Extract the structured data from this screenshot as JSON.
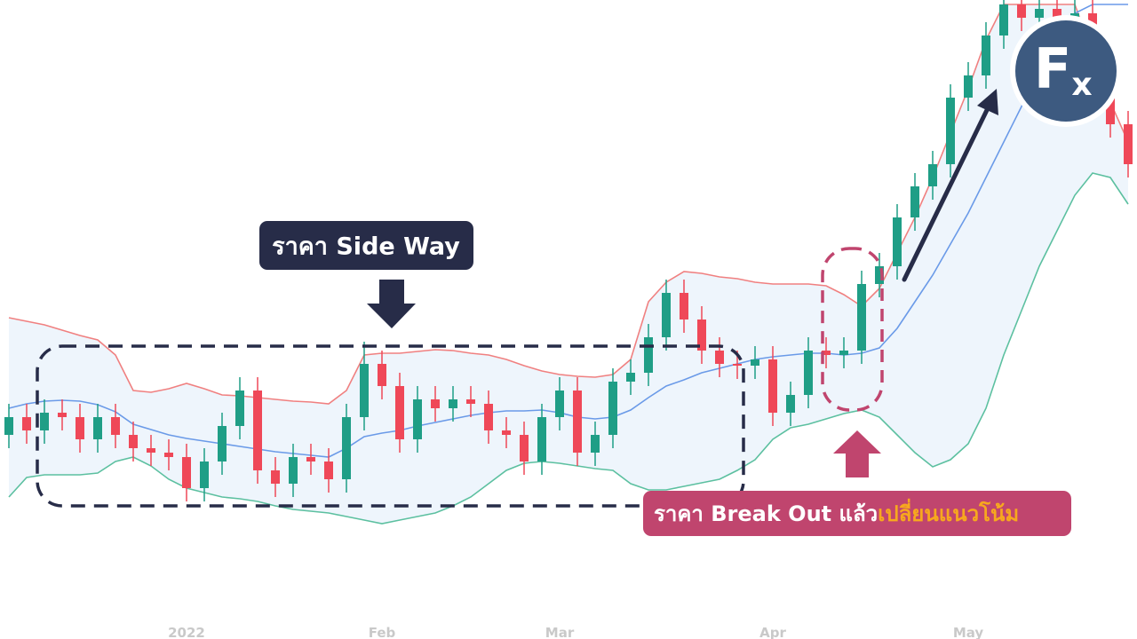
{
  "chart_data": {
    "type": "candlestick",
    "categories": [
      null,
      null,
      null,
      null,
      null,
      null,
      null,
      null,
      null,
      null,
      "2022",
      null,
      null,
      null,
      null,
      null,
      null,
      null,
      null,
      null,
      null,
      "Feb",
      null,
      null,
      null,
      null,
      null,
      null,
      null,
      null,
      null,
      "Mar",
      null,
      null,
      null,
      null,
      null,
      null,
      null,
      null,
      null,
      null,
      null,
      "Apr",
      null,
      null,
      null,
      null,
      null,
      null,
      null,
      null,
      null,
      null,
      "May",
      null,
      null,
      null,
      null,
      null,
      null,
      null,
      null,
      null
    ],
    "open": [
      230,
      250,
      235,
      255,
      250,
      225,
      250,
      230,
      215,
      210,
      205,
      170,
      200,
      240,
      280,
      190,
      175,
      205,
      200,
      180,
      250,
      310,
      285,
      225,
      270,
      260,
      270,
      265,
      235,
      230,
      200,
      250,
      280,
      210,
      230,
      290,
      300,
      340,
      390,
      360,
      325,
      310,
      308,
      315,
      255,
      275,
      325,
      320,
      325,
      400,
      420,
      475,
      510,
      535,
      610,
      635,
      680,
      715,
      700,
      710,
      690,
      705,
      660,
      580
    ],
    "high": [
      265,
      265,
      270,
      270,
      265,
      265,
      265,
      245,
      230,
      225,
      220,
      215,
      255,
      295,
      295,
      205,
      220,
      220,
      215,
      265,
      335,
      325,
      300,
      285,
      285,
      285,
      285,
      280,
      250,
      245,
      265,
      295,
      295,
      245,
      305,
      315,
      355,
      405,
      405,
      375,
      340,
      325,
      330,
      330,
      290,
      340,
      340,
      340,
      415,
      435,
      490,
      525,
      550,
      625,
      650,
      695,
      720,
      720,
      720,
      720,
      720,
      720,
      675,
      595
    ],
    "low": [
      215,
      220,
      220,
      235,
      210,
      210,
      215,
      200,
      195,
      190,
      155,
      155,
      185,
      225,
      175,
      160,
      160,
      185,
      165,
      165,
      235,
      270,
      210,
      210,
      245,
      245,
      250,
      220,
      215,
      185,
      185,
      235,
      195,
      195,
      215,
      275,
      285,
      325,
      345,
      310,
      295,
      293,
      293,
      240,
      240,
      260,
      305,
      305,
      310,
      385,
      405,
      460,
      495,
      520,
      595,
      620,
      665,
      685,
      685,
      675,
      675,
      645,
      565,
      520
    ],
    "close": [
      250,
      235,
      255,
      250,
      225,
      250,
      230,
      215,
      210,
      205,
      170,
      200,
      240,
      280,
      190,
      175,
      205,
      200,
      180,
      250,
      310,
      285,
      225,
      270,
      260,
      270,
      265,
      235,
      230,
      200,
      250,
      280,
      210,
      230,
      290,
      300,
      340,
      390,
      360,
      325,
      310,
      308,
      315,
      255,
      275,
      325,
      320,
      325,
      400,
      420,
      475,
      510,
      535,
      610,
      635,
      680,
      715,
      700,
      710,
      690,
      705,
      660,
      580,
      535
    ],
    "up_color": "#1f9e86",
    "down_color": "#ef4858",
    "band_fill": "#eef5fc",
    "bands": [
      {
        "color": "#f08080",
        "values": [
          362,
          358,
          354,
          348,
          342,
          337,
          320,
          280,
          278,
          282,
          288,
          282,
          275,
          274,
          272,
          270,
          268,
          267,
          265,
          280,
          320,
          322,
          322,
          324,
          326,
          325,
          322,
          320,
          315,
          308,
          302,
          298,
          296,
          295,
          298,
          315,
          380,
          402,
          414,
          412,
          408,
          406,
          402,
          400,
          400,
          400,
          398,
          388,
          375,
          395,
          435,
          475,
          520,
          570,
          620,
          675,
          715,
          715,
          715,
          715,
          715,
          660,
          605,
          560
        ]
      },
      {
        "color": "#6a9ae8",
        "values": [
          260,
          265,
          268,
          269,
          268,
          264,
          256,
          242,
          236,
          230,
          226,
          223,
          220,
          217,
          214,
          211,
          209,
          207,
          205,
          215,
          228,
          232,
          235,
          240,
          244,
          248,
          252,
          255,
          257,
          257,
          258,
          255,
          250,
          248,
          250,
          258,
          272,
          285,
          292,
          300,
          305,
          310,
          315,
          318,
          320,
          322,
          322,
          320,
          322,
          328,
          350,
          380,
          410,
          445,
          480,
          520,
          560,
          600,
          640,
          675,
          705,
          715,
          715,
          715
        ]
      },
      {
        "color": "#5cc0a0",
        "values": [
          160,
          182,
          185,
          185,
          185,
          187,
          200,
          205,
          195,
          180,
          170,
          165,
          160,
          158,
          155,
          150,
          146,
          144,
          142,
          138,
          134,
          130,
          134,
          138,
          142,
          150,
          160,
          175,
          190,
          198,
          200,
          198,
          195,
          192,
          190,
          175,
          168,
          168,
          172,
          176,
          180,
          190,
          202,
          225,
          238,
          242,
          248,
          254,
          258,
          250,
          230,
          210,
          194,
          202,
          220,
          260,
          320,
          370,
          420,
          460,
          500,
          525,
          520,
          490
        ]
      }
    ],
    "ylim": [
      0,
      720
    ],
    "annotations": {
      "side_way": "ราคา Side Way",
      "break_out": "ราคา Break Out  แล้ว",
      "break_out_highlight": "เปลี่ยนแนวโน้ม",
      "logo_main": "F",
      "logo_sub": "x"
    }
  }
}
